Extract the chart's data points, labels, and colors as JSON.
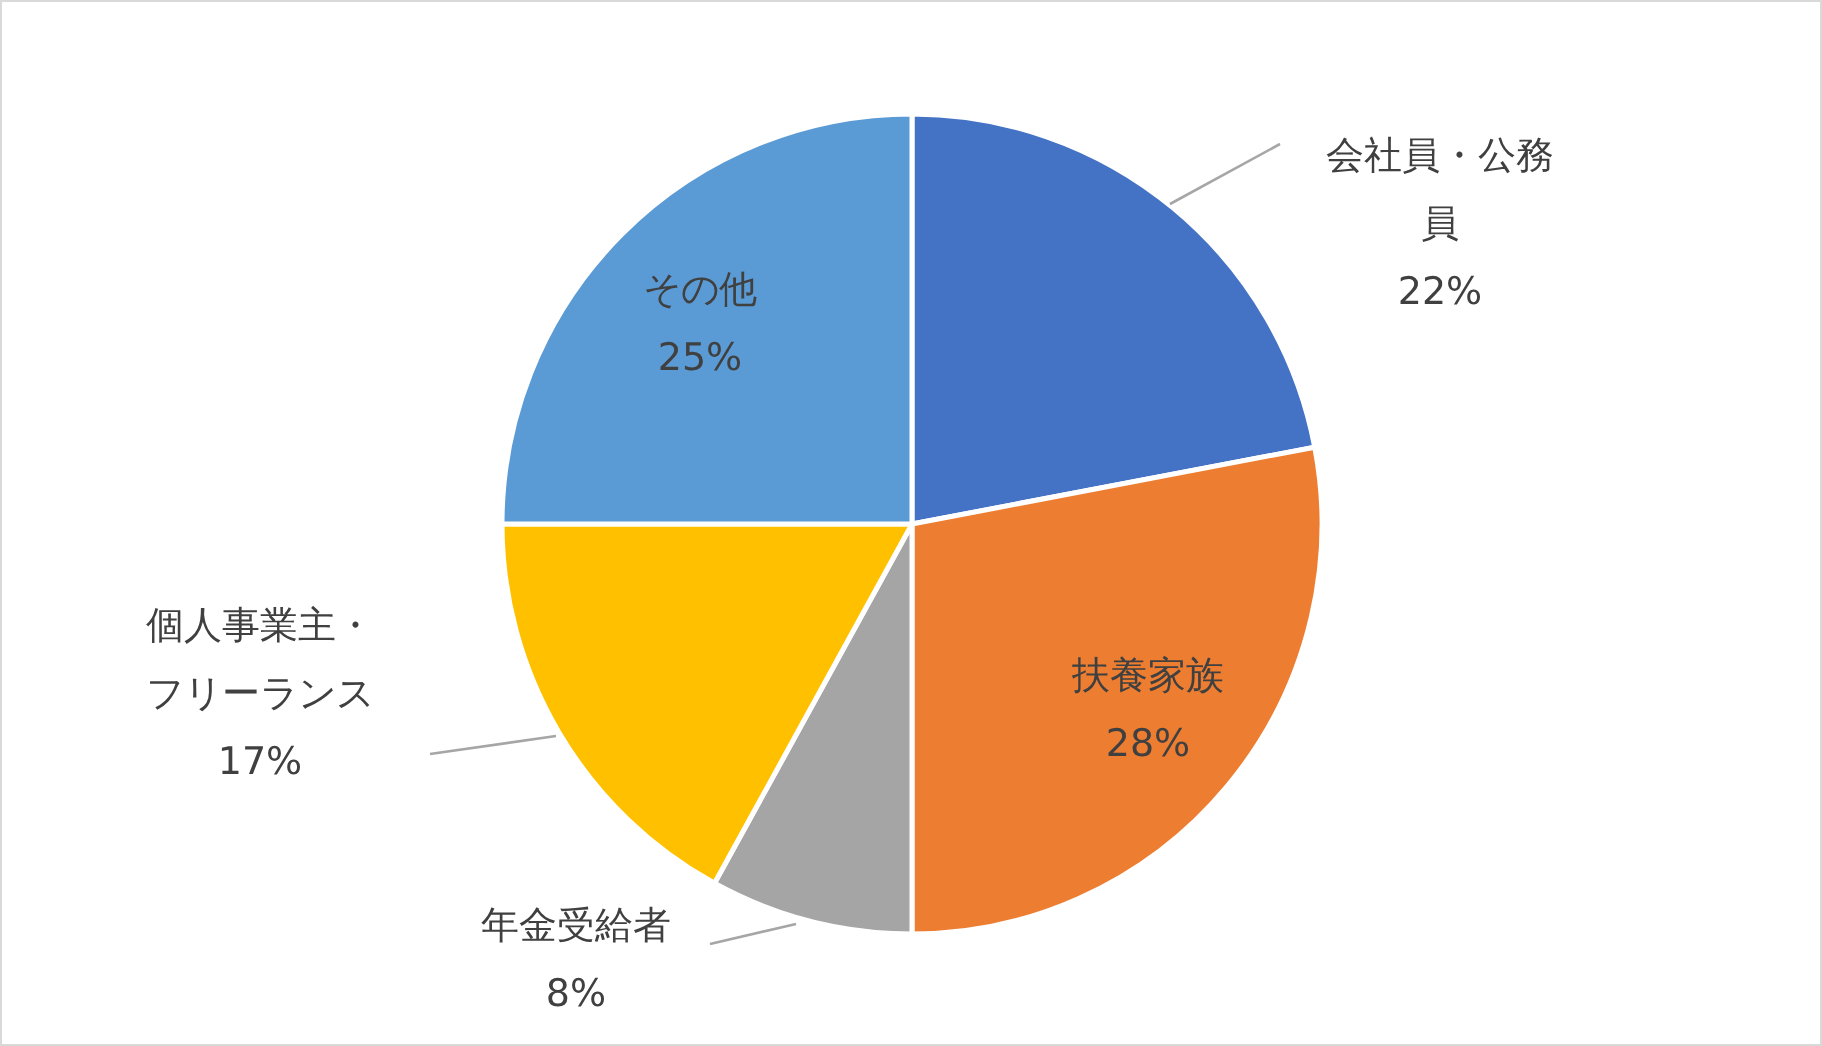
{
  "chart_data": {
    "type": "pie",
    "categories": [
      "会社員・公務員",
      "扶養家族",
      "年金受給者",
      "個人事業主・フリーランス",
      "その他"
    ],
    "values": [
      22,
      28,
      8,
      17,
      25
    ],
    "colors": [
      "#4472c4",
      "#ed7d31",
      "#a5a5a5",
      "#ffc000",
      "#5b9bd5"
    ],
    "value_labels": [
      "22%",
      "28%",
      "8%",
      "17%",
      "25%"
    ],
    "legend": false
  }
}
